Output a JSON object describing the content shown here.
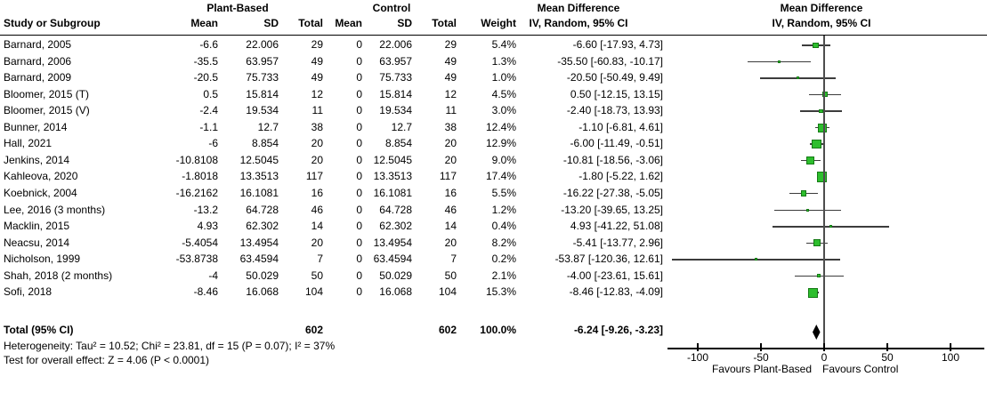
{
  "header": {
    "col_study": "Study or Subgroup",
    "group_plant": "Plant-Based",
    "group_control": "Control",
    "col_mean": "Mean",
    "col_sd": "SD",
    "col_total": "Total",
    "col_weight": "Weight",
    "md_text_title": "Mean Difference",
    "md_text_sub": "IV, Random, 95% CI",
    "md_plot_title": "Mean Difference",
    "md_plot_sub": "IV, Random, 95% CI"
  },
  "chart_data": {
    "type": "forest",
    "effect_measure": "Mean Difference, IV, Random, 95% CI",
    "x_axis": {
      "ticks": [
        -100,
        -50,
        0,
        50,
        100
      ],
      "range": [
        -124,
        127
      ],
      "label_left": "Favours Plant-Based",
      "label_right": "Favours Control"
    },
    "studies": [
      {
        "name": "Barnard, 2005",
        "pb_mean": "-6.6",
        "pb_sd": "22.006",
        "pb_total": "29",
        "c_mean": "0",
        "c_sd": "22.006",
        "c_total": "29",
        "weight": "5.4%",
        "ci_text": "-6.60 [-17.93, 4.73]",
        "md": -6.6,
        "lo": -17.93,
        "hi": 4.73,
        "w": 5.4
      },
      {
        "name": "Barnard, 2006",
        "pb_mean": "-35.5",
        "pb_sd": "63.957",
        "pb_total": "49",
        "c_mean": "0",
        "c_sd": "63.957",
        "c_total": "49",
        "weight": "1.3%",
        "ci_text": "-35.50 [-60.83, -10.17]",
        "md": -35.5,
        "lo": -60.83,
        "hi": -10.17,
        "w": 1.3
      },
      {
        "name": "Barnard, 2009",
        "pb_mean": "-20.5",
        "pb_sd": "75.733",
        "pb_total": "49",
        "c_mean": "0",
        "c_sd": "75.733",
        "c_total": "49",
        "weight": "1.0%",
        "ci_text": "-20.50 [-50.49, 9.49]",
        "md": -20.5,
        "lo": -50.49,
        "hi": 9.49,
        "w": 1.0
      },
      {
        "name": "Bloomer, 2015 (T)",
        "pb_mean": "0.5",
        "pb_sd": "15.814",
        "pb_total": "12",
        "c_mean": "0",
        "c_sd": "15.814",
        "c_total": "12",
        "weight": "4.5%",
        "ci_text": "0.50 [-12.15, 13.15]",
        "md": 0.5,
        "lo": -12.15,
        "hi": 13.15,
        "w": 4.5
      },
      {
        "name": "Bloomer, 2015 (V)",
        "pb_mean": "-2.4",
        "pb_sd": "19.534",
        "pb_total": "11",
        "c_mean": "0",
        "c_sd": "19.534",
        "c_total": "11",
        "weight": "3.0%",
        "ci_text": "-2.40 [-18.73, 13.93]",
        "md": -2.4,
        "lo": -18.73,
        "hi": 13.93,
        "w": 3.0
      },
      {
        "name": "Bunner, 2014",
        "pb_mean": "-1.1",
        "pb_sd": "12.7",
        "pb_total": "38",
        "c_mean": "0",
        "c_sd": "12.7",
        "c_total": "38",
        "weight": "12.4%",
        "ci_text": "-1.10 [-6.81, 4.61]",
        "md": -1.1,
        "lo": -6.81,
        "hi": 4.61,
        "w": 12.4
      },
      {
        "name": "Hall, 2021",
        "pb_mean": "-6",
        "pb_sd": "8.854",
        "pb_total": "20",
        "c_mean": "0",
        "c_sd": "8.854",
        "c_total": "20",
        "weight": "12.9%",
        "ci_text": "-6.00 [-11.49, -0.51]",
        "md": -6.0,
        "lo": -11.49,
        "hi": -0.51,
        "w": 12.9
      },
      {
        "name": "Jenkins, 2014",
        "pb_mean": "-10.8108",
        "pb_sd": "12.5045",
        "pb_total": "20",
        "c_mean": "0",
        "c_sd": "12.5045",
        "c_total": "20",
        "weight": "9.0%",
        "ci_text": "-10.81 [-18.56, -3.06]",
        "md": -10.81,
        "lo": -18.56,
        "hi": -3.06,
        "w": 9.0
      },
      {
        "name": "Kahleova, 2020",
        "pb_mean": "-1.8018",
        "pb_sd": "13.3513",
        "pb_total": "117",
        "c_mean": "0",
        "c_sd": "13.3513",
        "c_total": "117",
        "weight": "17.4%",
        "ci_text": "-1.80 [-5.22, 1.62]",
        "md": -1.8,
        "lo": -5.22,
        "hi": 1.62,
        "w": 17.4
      },
      {
        "name": "Koebnick, 2004",
        "pb_mean": "-16.2162",
        "pb_sd": "16.1081",
        "pb_total": "16",
        "c_mean": "0",
        "c_sd": "16.1081",
        "c_total": "16",
        "weight": "5.5%",
        "ci_text": "-16.22 [-27.38, -5.05]",
        "md": -16.22,
        "lo": -27.38,
        "hi": -5.05,
        "w": 5.5
      },
      {
        "name": "Lee, 2016 (3 months)",
        "pb_mean": "-13.2",
        "pb_sd": "64.728",
        "pb_total": "46",
        "c_mean": "0",
        "c_sd": "64.728",
        "c_total": "46",
        "weight": "1.2%",
        "ci_text": "-13.20 [-39.65, 13.25]",
        "md": -13.2,
        "lo": -39.65,
        "hi": 13.25,
        "w": 1.2
      },
      {
        "name": "Macklin, 2015",
        "pb_mean": "4.93",
        "pb_sd": "62.302",
        "pb_total": "14",
        "c_mean": "0",
        "c_sd": "62.302",
        "c_total": "14",
        "weight": "0.4%",
        "ci_text": "4.93 [-41.22, 51.08]",
        "md": 4.93,
        "lo": -41.22,
        "hi": 51.08,
        "w": 0.4
      },
      {
        "name": "Neacsu, 2014",
        "pb_mean": "-5.4054",
        "pb_sd": "13.4954",
        "pb_total": "20",
        "c_mean": "0",
        "c_sd": "13.4954",
        "c_total": "20",
        "weight": "8.2%",
        "ci_text": "-5.41 [-13.77, 2.96]",
        "md": -5.41,
        "lo": -13.77,
        "hi": 2.96,
        "w": 8.2
      },
      {
        "name": "Nicholson, 1999",
        "pb_mean": "-53.8738",
        "pb_sd": "63.4594",
        "pb_total": "7",
        "c_mean": "0",
        "c_sd": "63.4594",
        "c_total": "7",
        "weight": "0.2%",
        "ci_text": "-53.87 [-120.36, 12.61]",
        "md": -53.87,
        "lo": -120.36,
        "hi": 12.61,
        "w": 0.2
      },
      {
        "name": "Shah, 2018 (2 months)",
        "pb_mean": "-4",
        "pb_sd": "50.029",
        "pb_total": "50",
        "c_mean": "0",
        "c_sd": "50.029",
        "c_total": "50",
        "weight": "2.1%",
        "ci_text": "-4.00 [-23.61, 15.61]",
        "md": -4.0,
        "lo": -23.61,
        "hi": 15.61,
        "w": 2.1
      },
      {
        "name": "Sofi, 2018",
        "pb_mean": "-8.46",
        "pb_sd": "16.068",
        "pb_total": "104",
        "c_mean": "0",
        "c_sd": "16.068",
        "c_total": "104",
        "weight": "15.3%",
        "ci_text": "-8.46 [-12.83, -4.09]",
        "md": -8.46,
        "lo": -12.83,
        "hi": -4.09,
        "w": 15.3
      }
    ],
    "total": {
      "label": "Total (95% CI)",
      "pb_total": "602",
      "c_total": "602",
      "weight": "100.0%",
      "ci_text": "-6.24 [-9.26, -3.23]",
      "md": -6.24,
      "lo": -9.26,
      "hi": -3.23
    }
  },
  "footer": {
    "heterogeneity": "Heterogeneity: Tau² = 10.52; Chi² = 23.81, df = 15 (P = 0.07); I² = 37%",
    "overall_effect": "Test for overall effect: Z = 4.06 (P < 0.0001)"
  },
  "colors": {
    "marker_fill": "#2dbe2d",
    "marker_border": "#157a15",
    "ci_line": "#3c3c3c",
    "zero_line": "#4d4d4d",
    "axis": "#000000",
    "diamond": "#000000"
  }
}
